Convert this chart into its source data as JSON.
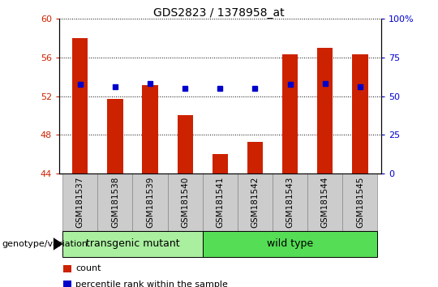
{
  "title": "GDS2823 / 1378958_at",
  "samples": [
    "GSM181537",
    "GSM181538",
    "GSM181539",
    "GSM181540",
    "GSM181541",
    "GSM181542",
    "GSM181543",
    "GSM181544",
    "GSM181545"
  ],
  "counts": [
    58.0,
    51.7,
    53.1,
    50.0,
    46.0,
    47.3,
    56.3,
    57.0,
    56.3
  ],
  "percentiles_left": [
    53.2,
    53.0,
    53.3,
    52.8,
    52.8,
    52.8,
    53.2,
    53.3,
    53.0
  ],
  "ylim_left": [
    44,
    60
  ],
  "ylim_right": [
    0,
    100
  ],
  "yticks_left": [
    44,
    48,
    52,
    56,
    60
  ],
  "yticks_right": [
    0,
    25,
    50,
    75,
    100
  ],
  "bar_color": "#CC2200",
  "dot_color": "#0000CC",
  "bar_bottom": 44,
  "groups": [
    {
      "label": "transgenic mutant",
      "start": 0,
      "end": 4,
      "color": "#AAEEA0"
    },
    {
      "label": "wild type",
      "start": 4,
      "end": 9,
      "color": "#55DD55"
    }
  ],
  "group_label": "genotype/variation",
  "legend_count": "count",
  "legend_pct": "percentile rank within the sample",
  "title_fontsize": 10,
  "tick_fontsize": 8,
  "label_fontsize": 7.5,
  "group_fontsize": 9,
  "legend_fontsize": 8
}
